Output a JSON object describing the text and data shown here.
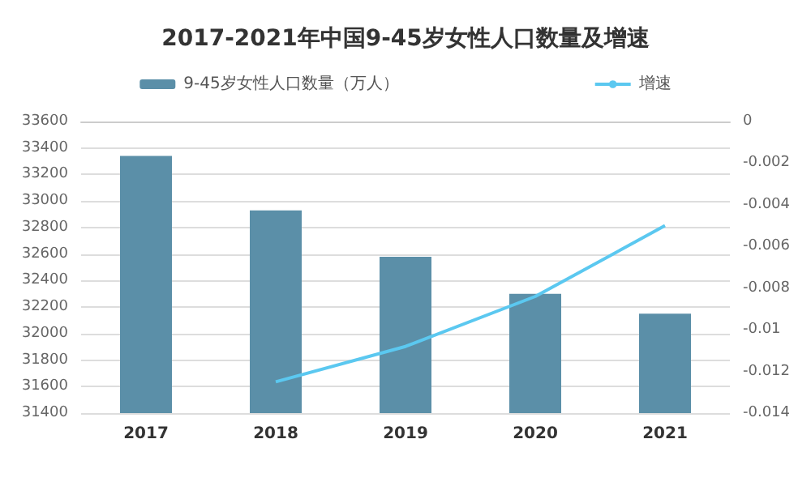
{
  "chart_data": {
    "type": "bar",
    "title": "2017-2021年中国9-45岁女性人口数量及增速",
    "categories": [
      "2017",
      "2018",
      "2019",
      "2020",
      "2021"
    ],
    "series": [
      {
        "name": "9-45岁女性人口数量（万人）",
        "color": "#5b8fa8",
        "values": [
          33340,
          32930,
          32580,
          32300,
          32150
        ]
      },
      {
        "name": "增速",
        "type": "line",
        "axis": "y2",
        "color": "#5bc8f0",
        "values": [
          null,
          -0.0125,
          -0.0108,
          -0.0084,
          -0.005
        ]
      }
    ],
    "ylim": [
      31400,
      33600
    ],
    "yticks": [
      31400,
      31600,
      31800,
      32000,
      32200,
      32400,
      32600,
      32800,
      33000,
      33200,
      33400,
      33600
    ],
    "y2lim": [
      -0.014,
      0
    ],
    "y2ticks": [
      -0.014,
      -0.012,
      -0.01,
      -0.008,
      -0.006,
      -0.004,
      -0.002,
      0
    ],
    "grid": "y",
    "legend": "top",
    "marker": "none",
    "line_style": "solid"
  }
}
